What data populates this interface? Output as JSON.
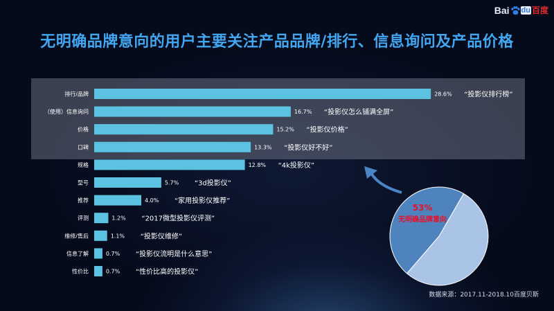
{
  "title": "无明确品牌意向的用户主要关注产品品牌/排行、信息询问及产品价格",
  "logo": {
    "part1": "Bai",
    "part2": "du",
    "part3": "百度"
  },
  "source": "数据来源：2017.11-2018.10百度贝斯",
  "colors": {
    "bar": "#5bc3e1",
    "title": "#43a6f0",
    "pie_major": "#a9c4e6",
    "pie_minor": "#4f83bd",
    "pie_label": "#e8102a"
  },
  "pie": {
    "percent_label": "53%",
    "caption": "无明确品牌意向",
    "fraction": 0.53
  },
  "chart_data": {
    "type": "bar",
    "orientation": "horizontal",
    "categories": [
      "排行/品牌",
      "（使用）信息询问",
      "价格",
      "口碑",
      "规格",
      "型号",
      "推荐",
      "评测",
      "维修/售后",
      "信息了解",
      "性价比"
    ],
    "values": [
      28.6,
      16.7,
      15.2,
      13.3,
      12.8,
      5.7,
      4.0,
      1.2,
      1.1,
      0.7,
      0.7
    ],
    "value_labels": [
      "28.6%",
      "16.7%",
      "15.2%",
      "13.3%",
      "12.8%",
      "5.7%",
      "4.0%",
      "1.2%",
      "1.1%",
      "0.7%",
      "0.7%"
    ],
    "keywords": [
      "“投影仪排行榜”",
      "“投影仪怎么铺满全屏”",
      "“投影仪价格”",
      "“投影仪好不好”",
      "“4k投影仪”",
      "“3d投影仪”",
      "“家用投影仪推荐”",
      "“2017微型投影仪评测”",
      "“投影仪维修”",
      "“投影仪流明是什么意思”",
      "“性价比高的投影仪”"
    ],
    "highlighted_rows": 4,
    "xlim": [
      0,
      30
    ]
  }
}
